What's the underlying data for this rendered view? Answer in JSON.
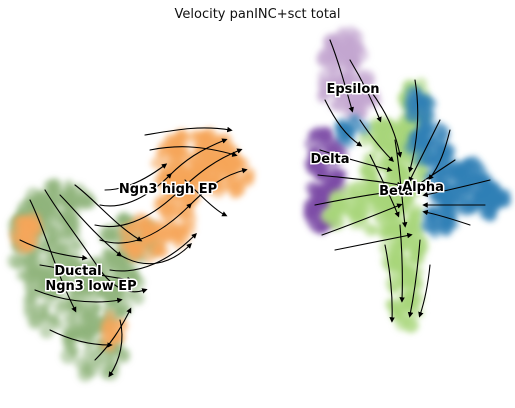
{
  "chart_data": {
    "type": "scatter",
    "title": "Velocity panINC+sct total",
    "xlabel": "",
    "ylabel": "",
    "grid": false,
    "legend": "on data",
    "clusters": [
      {
        "name": "Ductal",
        "color": "#8fb47c"
      },
      {
        "name": "Ngn3 low EP",
        "color": "#8fb47c"
      },
      {
        "name": "Ngn3 high EP",
        "color": "#f5a55a"
      },
      {
        "name": "Epsilon",
        "color": "#c3a5cf"
      },
      {
        "name": "Delta",
        "color": "#7b4aa6"
      },
      {
        "name": "Beta",
        "color": "#a8d67a"
      },
      {
        "name": "Alpha",
        "color": "#2f7fb6"
      }
    ],
    "arrows": "streamlines"
  }
}
